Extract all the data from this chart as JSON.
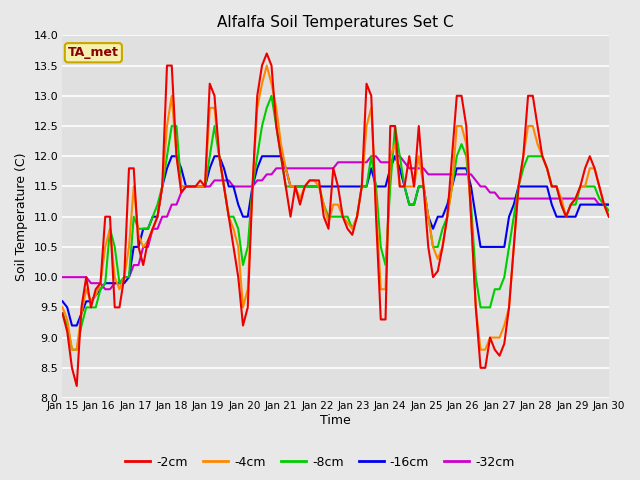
{
  "title": "Alfalfa Soil Temperatures Set C",
  "xlabel": "Time",
  "ylabel": "Soil Temperature (C)",
  "ylim": [
    8.0,
    14.0
  ],
  "yticks": [
    8.0,
    8.5,
    9.0,
    9.5,
    10.0,
    10.5,
    11.0,
    11.5,
    12.0,
    12.5,
    13.0,
    13.5,
    14.0
  ],
  "xtick_labels": [
    "Jan 15",
    "Jan 16",
    "Jan 17",
    "Jan 18",
    "Jan 19",
    "Jan 20",
    "Jan 21",
    "Jan 22",
    "Jan 23",
    "Jan 24",
    "Jan 25",
    "Jan 26",
    "Jan 27",
    "Jan 28",
    "Jan 29",
    "Jan 30"
  ],
  "fig_bg_color": "#e8e8e8",
  "plot_bg_color": "#e0e0e0",
  "grid_color": "#ffffff",
  "legend_label": "TA_met",
  "legend_box_facecolor": "#f5f0b0",
  "legend_box_edgecolor": "#c8a800",
  "legend_text_color": "#8b0000",
  "series": {
    "-2cm": {
      "color": "#ee0000",
      "lw": 1.5
    },
    "-4cm": {
      "color": "#ff8800",
      "lw": 1.5
    },
    "-8cm": {
      "color": "#00cc00",
      "lw": 1.5
    },
    "-16cm": {
      "color": "#0000ee",
      "lw": 1.5
    },
    "-32cm": {
      "color": "#cc00cc",
      "lw": 1.5
    }
  },
  "n_points": 116,
  "y_2cm": [
    9.4,
    9.1,
    8.5,
    8.2,
    9.5,
    10.0,
    9.5,
    9.8,
    9.9,
    11.0,
    11.0,
    9.5,
    9.5,
    10.0,
    11.8,
    11.8,
    10.5,
    10.2,
    10.6,
    10.8,
    11.0,
    11.5,
    13.5,
    13.5,
    12.0,
    11.4,
    11.5,
    11.5,
    11.5,
    11.6,
    11.5,
    13.2,
    13.0,
    12.0,
    11.5,
    11.0,
    10.5,
    10.0,
    9.2,
    9.5,
    11.5,
    13.0,
    13.5,
    13.7,
    13.5,
    12.5,
    12.0,
    11.5,
    11.0,
    11.5,
    11.2,
    11.5,
    11.6,
    11.6,
    11.6,
    11.0,
    10.8,
    11.8,
    11.5,
    11.0,
    10.8,
    10.7,
    11.0,
    11.5,
    13.2,
    13.0,
    11.0,
    9.3,
    9.3,
    12.5,
    12.5,
    11.5,
    11.5,
    12.0,
    11.5,
    12.5,
    11.5,
    10.5,
    10.0,
    10.1,
    10.5,
    11.0,
    12.0,
    13.0,
    13.0,
    12.5,
    11.0,
    9.5,
    8.5,
    8.5,
    9.0,
    8.8,
    8.7,
    8.9,
    9.5,
    10.5,
    11.5,
    12.0,
    13.0,
    13.0,
    12.5,
    12.0,
    11.8,
    11.5,
    11.5,
    11.2,
    11.0,
    11.2,
    11.3,
    11.5,
    11.8,
    12.0,
    11.8,
    11.5,
    11.2,
    11.0
  ],
  "y_4cm": [
    9.5,
    9.3,
    8.8,
    8.8,
    9.4,
    9.8,
    9.6,
    9.7,
    9.9,
    10.5,
    10.8,
    10.0,
    9.8,
    10.0,
    10.5,
    11.5,
    10.7,
    10.5,
    10.6,
    10.8,
    11.0,
    11.5,
    12.5,
    13.0,
    12.0,
    11.5,
    11.5,
    11.5,
    11.5,
    11.5,
    11.5,
    12.8,
    12.8,
    12.0,
    11.5,
    11.0,
    10.8,
    10.5,
    9.5,
    9.8,
    11.5,
    12.8,
    13.2,
    13.5,
    13.2,
    12.8,
    12.2,
    11.8,
    11.5,
    11.5,
    11.3,
    11.5,
    11.6,
    11.6,
    11.5,
    11.2,
    10.9,
    11.2,
    11.2,
    11.0,
    10.9,
    10.8,
    11.0,
    11.5,
    12.5,
    12.8,
    11.2,
    9.8,
    9.8,
    12.0,
    12.2,
    11.5,
    11.5,
    11.5,
    11.5,
    12.0,
    11.5,
    11.0,
    10.5,
    10.3,
    10.5,
    11.0,
    11.5,
    12.5,
    12.5,
    12.2,
    11.0,
    9.5,
    8.8,
    8.8,
    9.0,
    9.0,
    9.0,
    9.2,
    9.5,
    10.5,
    11.5,
    12.0,
    12.5,
    12.5,
    12.2,
    12.0,
    11.8,
    11.5,
    11.5,
    11.3,
    11.0,
    11.2,
    11.3,
    11.5,
    11.5,
    11.8,
    11.8,
    11.5,
    11.2,
    11.0
  ],
  "y_8cm": [
    9.4,
    9.2,
    8.8,
    8.8,
    9.2,
    9.5,
    9.5,
    9.5,
    9.8,
    9.9,
    10.8,
    10.5,
    9.9,
    10.0,
    10.0,
    11.0,
    10.8,
    10.8,
    10.8,
    11.0,
    11.2,
    11.5,
    12.0,
    12.5,
    12.5,
    11.5,
    11.5,
    11.5,
    11.5,
    11.5,
    11.5,
    12.0,
    12.5,
    12.0,
    11.5,
    11.0,
    11.0,
    10.8,
    10.2,
    10.5,
    11.5,
    12.0,
    12.5,
    12.8,
    13.0,
    12.5,
    12.0,
    11.5,
    11.5,
    11.5,
    11.5,
    11.5,
    11.5,
    11.5,
    11.5,
    11.2,
    11.0,
    11.0,
    11.0,
    11.0,
    11.0,
    10.8,
    11.0,
    11.5,
    11.5,
    12.0,
    11.5,
    10.5,
    10.2,
    11.5,
    12.5,
    12.0,
    11.5,
    11.2,
    11.2,
    11.5,
    11.5,
    11.0,
    10.5,
    10.5,
    10.8,
    11.0,
    11.5,
    12.0,
    12.2,
    12.0,
    11.2,
    10.0,
    9.5,
    9.5,
    9.5,
    9.8,
    9.8,
    10.0,
    10.5,
    11.0,
    11.5,
    11.8,
    12.0,
    12.0,
    12.0,
    12.0,
    11.8,
    11.5,
    11.5,
    11.2,
    11.0,
    11.2,
    11.2,
    11.5,
    11.5,
    11.5,
    11.5,
    11.3,
    11.2,
    11.1
  ],
  "y_16cm": [
    9.6,
    9.5,
    9.2,
    9.2,
    9.4,
    9.6,
    9.6,
    9.7,
    9.8,
    9.9,
    9.9,
    9.9,
    9.9,
    9.9,
    10.0,
    10.5,
    10.5,
    10.8,
    10.8,
    11.0,
    11.0,
    11.5,
    11.8,
    12.0,
    12.0,
    11.8,
    11.5,
    11.5,
    11.5,
    11.5,
    11.5,
    11.8,
    12.0,
    12.0,
    11.8,
    11.5,
    11.5,
    11.2,
    11.0,
    11.0,
    11.5,
    11.8,
    12.0,
    12.0,
    12.0,
    12.0,
    12.0,
    11.8,
    11.5,
    11.5,
    11.5,
    11.5,
    11.5,
    11.5,
    11.5,
    11.5,
    11.5,
    11.5,
    11.5,
    11.5,
    11.5,
    11.5,
    11.5,
    11.5,
    11.5,
    11.8,
    11.5,
    11.5,
    11.5,
    11.8,
    12.0,
    11.8,
    11.5,
    11.2,
    11.2,
    11.5,
    11.5,
    11.0,
    10.8,
    11.0,
    11.0,
    11.2,
    11.5,
    11.8,
    11.8,
    11.8,
    11.5,
    11.0,
    10.5,
    10.5,
    10.5,
    10.5,
    10.5,
    10.5,
    11.0,
    11.2,
    11.5,
    11.5,
    11.5,
    11.5,
    11.5,
    11.5,
    11.5,
    11.2,
    11.0,
    11.0,
    11.0,
    11.0,
    11.0,
    11.2,
    11.2,
    11.2,
    11.2,
    11.2,
    11.2,
    11.2
  ],
  "y_32cm": [
    10.0,
    10.0,
    10.0,
    10.0,
    10.0,
    10.0,
    9.9,
    9.9,
    9.9,
    9.8,
    9.8,
    9.9,
    9.9,
    10.0,
    10.0,
    10.2,
    10.2,
    10.5,
    10.5,
    10.8,
    10.8,
    11.0,
    11.0,
    11.2,
    11.2,
    11.4,
    11.5,
    11.5,
    11.5,
    11.5,
    11.5,
    11.5,
    11.6,
    11.6,
    11.6,
    11.6,
    11.5,
    11.5,
    11.5,
    11.5,
    11.5,
    11.6,
    11.6,
    11.7,
    11.7,
    11.8,
    11.8,
    11.8,
    11.8,
    11.8,
    11.8,
    11.8,
    11.8,
    11.8,
    11.8,
    11.8,
    11.8,
    11.8,
    11.9,
    11.9,
    11.9,
    11.9,
    11.9,
    11.9,
    11.9,
    12.0,
    12.0,
    11.9,
    11.9,
    11.9,
    12.0,
    12.0,
    11.9,
    11.8,
    11.8,
    11.8,
    11.8,
    11.7,
    11.7,
    11.7,
    11.7,
    11.7,
    11.7,
    11.7,
    11.7,
    11.7,
    11.7,
    11.6,
    11.5,
    11.5,
    11.4,
    11.4,
    11.3,
    11.3,
    11.3,
    11.3,
    11.3,
    11.3,
    11.3,
    11.3,
    11.3,
    11.3,
    11.3,
    11.3,
    11.3,
    11.3,
    11.3,
    11.3,
    11.3,
    11.3,
    11.3,
    11.3,
    11.3,
    11.2,
    11.2,
    11.2
  ]
}
